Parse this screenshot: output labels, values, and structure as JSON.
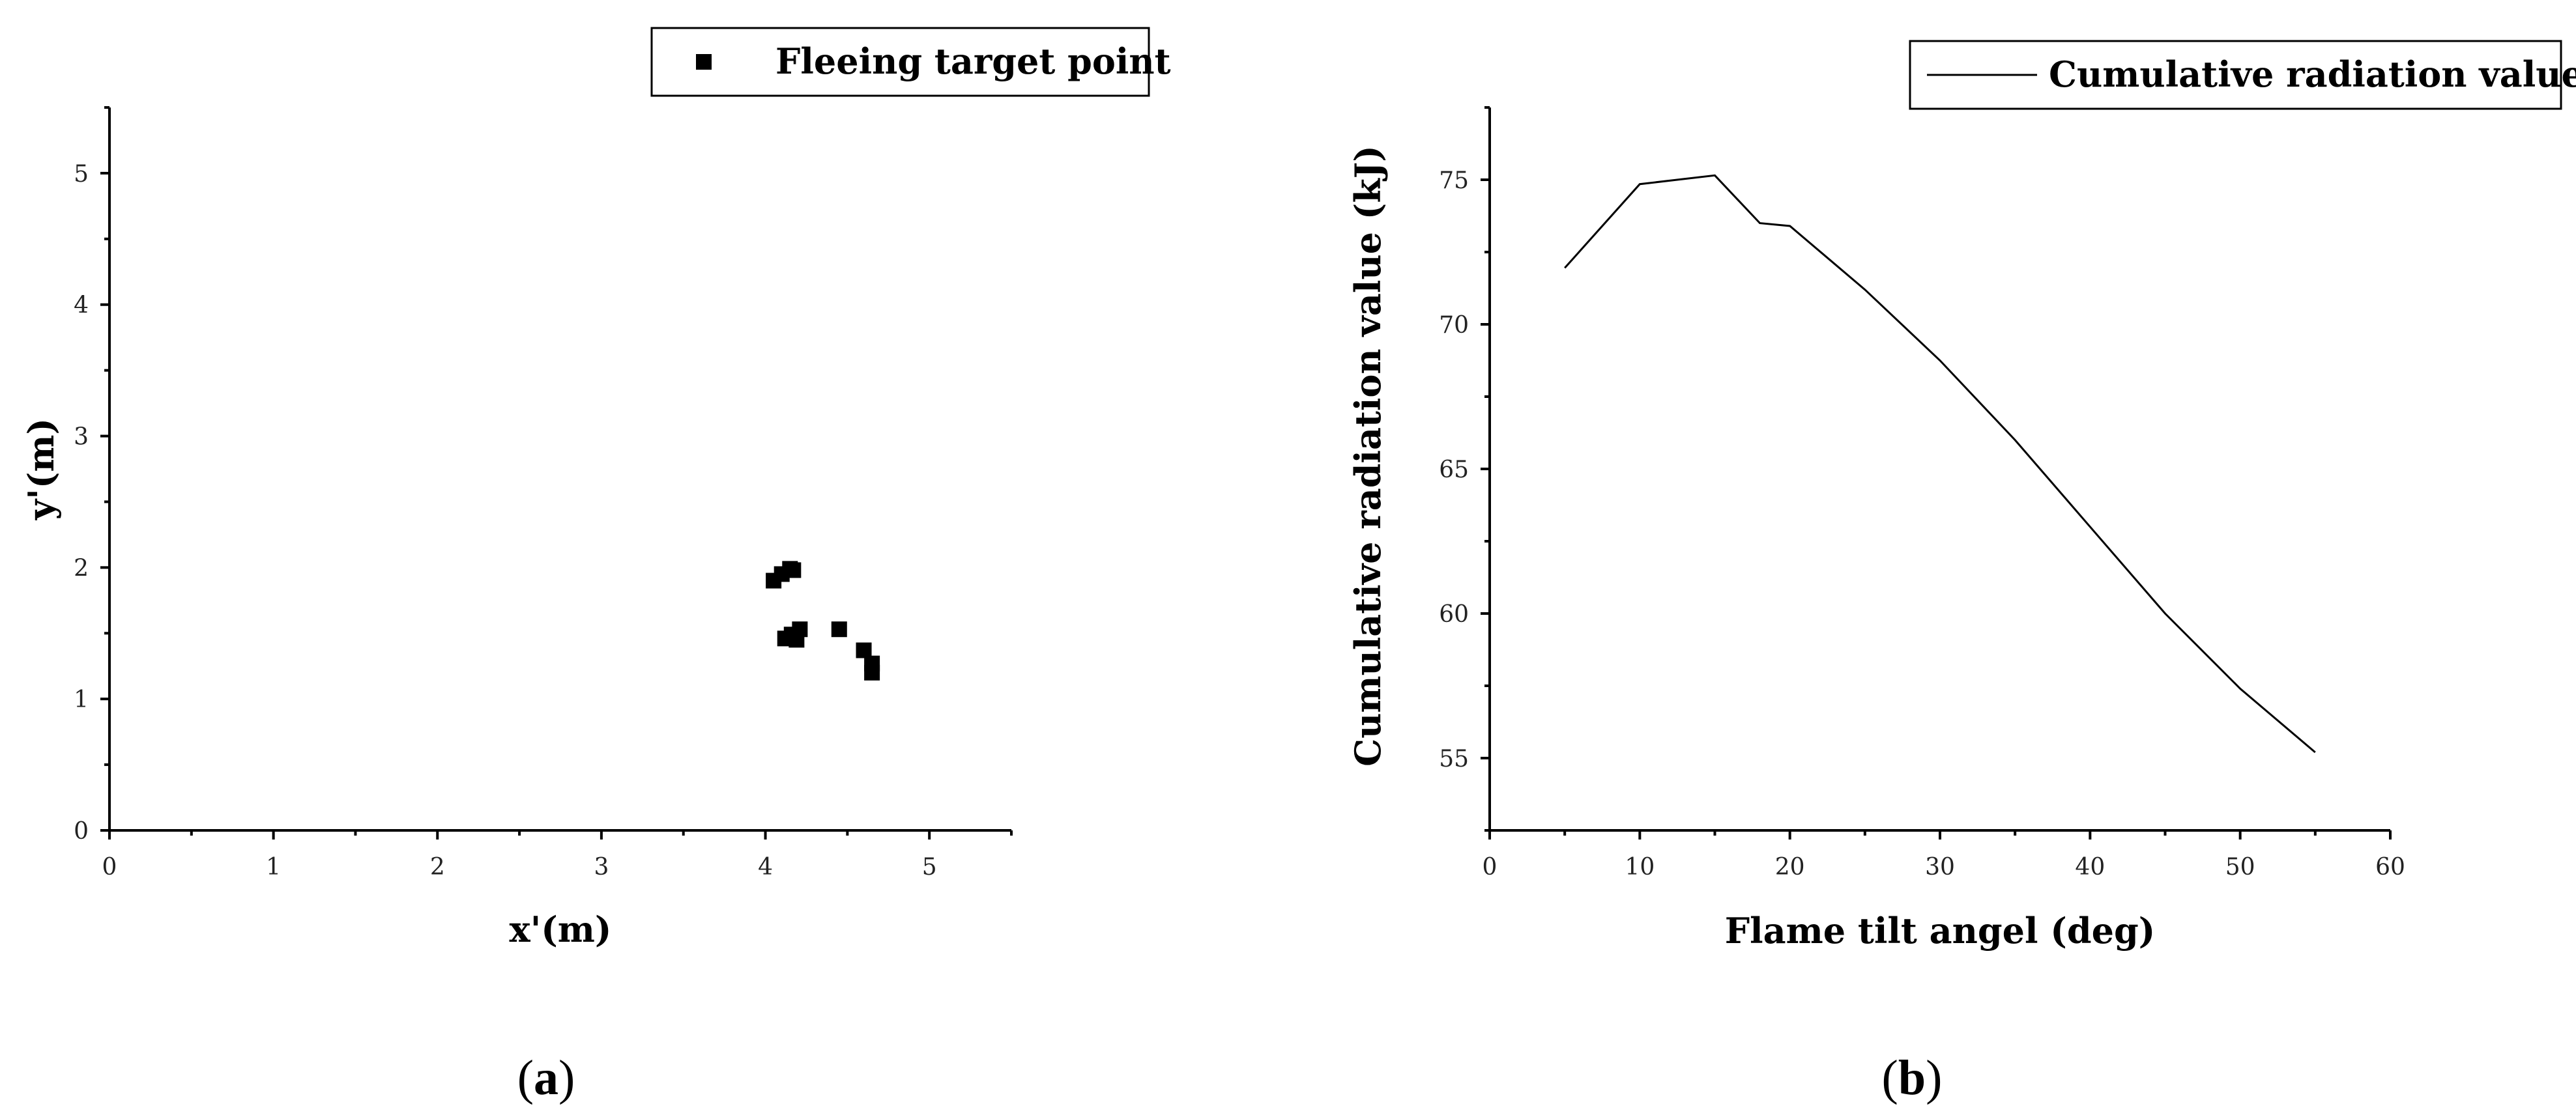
{
  "chart_data": [
    {
      "id": "a",
      "type": "scatter",
      "panel_label": "a",
      "xlabel": "x'(m)",
      "ylabel": "y'(m)",
      "xlim": [
        0,
        5.5
      ],
      "ylim": [
        0,
        5.5
      ],
      "xticks": [
        0,
        1,
        2,
        3,
        4,
        5
      ],
      "yticks": [
        0,
        1,
        2,
        3,
        4,
        5
      ],
      "legend": {
        "position": "top-right"
      },
      "series": [
        {
          "name": "Fleeing target point",
          "marker": "square",
          "color": "#000000",
          "points": [
            [
              4.05,
              1.9
            ],
            [
              4.1,
              1.95
            ],
            [
              4.15,
              1.99
            ],
            [
              4.17,
              1.98
            ],
            [
              4.12,
              1.46
            ],
            [
              4.16,
              1.49
            ],
            [
              4.19,
              1.45
            ],
            [
              4.21,
              1.53
            ],
            [
              4.45,
              1.53
            ],
            [
              4.6,
              1.37
            ],
            [
              4.65,
              1.27
            ],
            [
              4.65,
              1.2
            ]
          ]
        }
      ]
    },
    {
      "id": "b",
      "type": "line",
      "panel_label": "b",
      "xlabel": "Flame tilt angel (deg)",
      "ylabel": "Cumulative radiation value (kJ)",
      "xlim": [
        0,
        60
      ],
      "ylim": [
        52.5,
        77.5
      ],
      "xticks": [
        0,
        10,
        20,
        30,
        40,
        50,
        60
      ],
      "yticks": [
        55,
        60,
        65,
        70,
        75
      ],
      "legend": {
        "position": "top-right"
      },
      "series": [
        {
          "name": "Cumulative radiation value",
          "color": "#000000",
          "x": [
            5,
            10,
            15,
            18,
            20,
            25,
            30,
            35,
            40,
            45,
            50,
            55
          ],
          "values": [
            71.95,
            74.85,
            75.15,
            73.5,
            73.4,
            71.2,
            68.75,
            66.0,
            63.0,
            60.0,
            57.4,
            55.2
          ]
        }
      ]
    }
  ]
}
